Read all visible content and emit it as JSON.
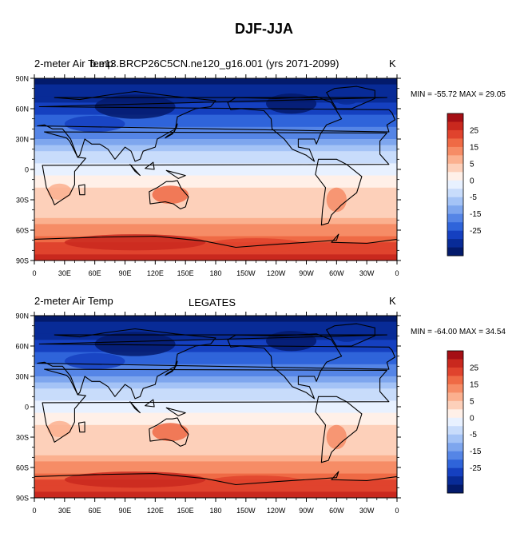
{
  "figure": {
    "title": "DJF-JJA"
  },
  "chart_data": [
    {
      "type": "heatmap",
      "kind": "global map",
      "left_label": "2-meter Air Temp",
      "center_label": "b.e13.BRCP26C5CN.ne120_g16.001 (yrs 2071-2099)",
      "units": "K",
      "min_max_text": "MIN = -55.72 MAX =  29.05",
      "min": -55.72,
      "max": 29.05,
      "lat_ticks": [
        "90N",
        "60N",
        "30N",
        "0",
        "30S",
        "60S",
        "90S"
      ],
      "lon_ticks": [
        "0",
        "30E",
        "60E",
        "90E",
        "120E",
        "150E",
        "180",
        "150W",
        "120W",
        "90W",
        "60W",
        "30W",
        "0"
      ],
      "colorbar_levels": [
        "25",
        "15",
        "5",
        "0",
        "-5",
        "-15",
        "-25"
      ],
      "colorbar_colors": [
        "#a50f15",
        "#c9281e",
        "#e0432d",
        "#ef6a45",
        "#f68c66",
        "#fbb08f",
        "#fdd0ba",
        "#fff0e8",
        "#e8f1ff",
        "#c8dcfb",
        "#a4c3f6",
        "#7ea6ee",
        "#5585e6",
        "#2f64da",
        "#1540c0",
        "#082b97",
        "#031a6b"
      ]
    },
    {
      "type": "heatmap",
      "kind": "global map",
      "left_label": "2-meter Air Temp",
      "center_label": "LEGATES",
      "units": "K",
      "min_max_text": "MIN = -64.00 MAX =  34.54",
      "min": -64.0,
      "max": 34.54,
      "lat_ticks": [
        "90N",
        "60N",
        "30N",
        "0",
        "30S",
        "60S",
        "90S"
      ],
      "lon_ticks": [
        "0",
        "30E",
        "60E",
        "90E",
        "120E",
        "150E",
        "180",
        "150W",
        "120W",
        "90W",
        "60W",
        "30W",
        "0"
      ],
      "colorbar_levels": [
        "25",
        "15",
        "5",
        "0",
        "-5",
        "-15",
        "-25"
      ],
      "colorbar_colors": [
        "#a50f15",
        "#c9281e",
        "#e0432d",
        "#ef6a45",
        "#f68c66",
        "#fbb08f",
        "#fdd0ba",
        "#fff0e8",
        "#e8f1ff",
        "#c8dcfb",
        "#a4c3f6",
        "#7ea6ee",
        "#5585e6",
        "#2f64da",
        "#1540c0",
        "#082b97",
        "#031a6b"
      ]
    }
  ]
}
